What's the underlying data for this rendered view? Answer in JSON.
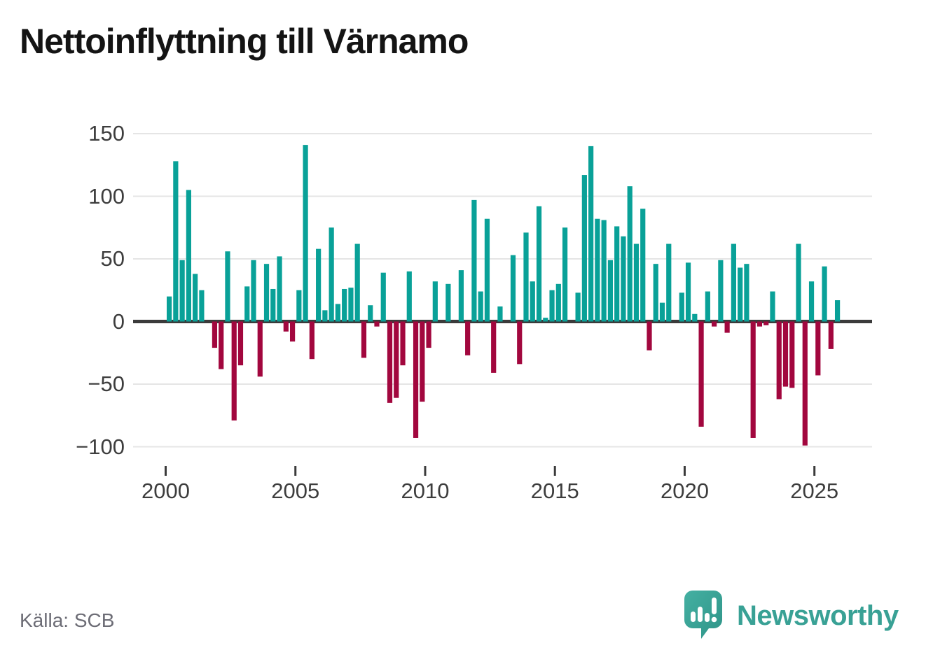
{
  "page": {
    "title": "Nettoinflyttning till Värnamo",
    "source": "Källa: SCB",
    "brand": "Newsworthy"
  },
  "axis": {
    "y_ticks": [
      "150",
      "100",
      "50",
      "0",
      "−50",
      "−100"
    ],
    "y_tick_values": [
      150,
      100,
      50,
      0,
      -50,
      -100
    ],
    "x_ticks": [
      "2000",
      "2005",
      "2010",
      "2015",
      "2020",
      "2025"
    ]
  },
  "colors": {
    "positive": "#09a198",
    "negative": "#a2073e",
    "grid": "#e5e5e5",
    "zero_line": "#3b3b3b",
    "tick": "#3b3b3b",
    "title_text": "#141414",
    "axis_text": "#3d3d3d",
    "source_text": "#6c6c75",
    "brand_teal": "#39a195"
  },
  "chart_data": {
    "type": "bar",
    "title": "Nettoinflyttning till Värnamo",
    "xlabel": "",
    "ylabel": "",
    "frequency": "quarterly",
    "x_start": "2000Q1",
    "x_end": "2025Q4",
    "ylim": [
      -125,
      167
    ],
    "y_gridlines": [
      150,
      100,
      50,
      0,
      -50,
      -100
    ],
    "grid": "horizontal-only",
    "legend": "none",
    "positive_color": "#09a198",
    "negative_color": "#a2073e",
    "source": "Källa: SCB",
    "categories": [
      "2000Q1",
      "2000Q2",
      "2000Q3",
      "2000Q4",
      "2001Q1",
      "2001Q2",
      "2001Q3",
      "2001Q4",
      "2002Q1",
      "2002Q2",
      "2002Q3",
      "2002Q4",
      "2003Q1",
      "2003Q2",
      "2003Q3",
      "2003Q4",
      "2004Q1",
      "2004Q2",
      "2004Q3",
      "2004Q4",
      "2005Q1",
      "2005Q2",
      "2005Q3",
      "2005Q4",
      "2006Q1",
      "2006Q2",
      "2006Q3",
      "2006Q4",
      "2007Q1",
      "2007Q2",
      "2007Q3",
      "2007Q4",
      "2008Q1",
      "2008Q2",
      "2008Q3",
      "2008Q4",
      "2009Q1",
      "2009Q2",
      "2009Q3",
      "2009Q4",
      "2010Q1",
      "2010Q2",
      "2010Q3",
      "2010Q4",
      "2011Q1",
      "2011Q2",
      "2011Q3",
      "2011Q4",
      "2012Q1",
      "2012Q2",
      "2012Q3",
      "2012Q4",
      "2013Q1",
      "2013Q2",
      "2013Q3",
      "2013Q4",
      "2014Q1",
      "2014Q2",
      "2014Q3",
      "2014Q4",
      "2015Q1",
      "2015Q2",
      "2015Q3",
      "2015Q4",
      "2016Q1",
      "2016Q2",
      "2016Q3",
      "2016Q4",
      "2017Q1",
      "2017Q2",
      "2017Q3",
      "2017Q4",
      "2018Q1",
      "2018Q2",
      "2018Q3",
      "2018Q4",
      "2019Q1",
      "2019Q2",
      "2019Q3",
      "2019Q4",
      "2020Q1",
      "2020Q2",
      "2020Q3",
      "2020Q4",
      "2021Q1",
      "2021Q2",
      "2021Q3",
      "2021Q4",
      "2022Q1",
      "2022Q2",
      "2022Q3",
      "2022Q4",
      "2023Q1",
      "2023Q2",
      "2023Q3",
      "2023Q4",
      "2024Q1",
      "2024Q2",
      "2024Q3",
      "2024Q4",
      "2025Q1",
      "2025Q2",
      "2025Q3",
      "2025Q4"
    ],
    "values": [
      20,
      128,
      49,
      105,
      38,
      25,
      0,
      -21,
      -38,
      56,
      -79,
      -35,
      28,
      49,
      -44,
      46,
      26,
      52,
      -8,
      -16,
      25,
      141,
      -30,
      58,
      9,
      75,
      14,
      26,
      27,
      62,
      -29,
      13,
      -4,
      39,
      -65,
      -61,
      -35,
      40,
      -93,
      -64,
      -21,
      32,
      0,
      30,
      0,
      41,
      -27,
      97,
      24,
      82,
      -41,
      12,
      0,
      53,
      -34,
      71,
      32,
      92,
      3,
      25,
      30,
      75,
      0,
      23,
      117,
      140,
      82,
      81,
      49,
      76,
      68,
      108,
      62,
      90,
      -23,
      46,
      15,
      62,
      0,
      23,
      47,
      6,
      -84,
      24,
      -4,
      49,
      -9,
      62,
      43,
      46,
      -93,
      -4,
      -3,
      24,
      -62,
      -52,
      -53,
      62,
      -99,
      32,
      -43,
      44,
      -22,
      17
    ]
  }
}
